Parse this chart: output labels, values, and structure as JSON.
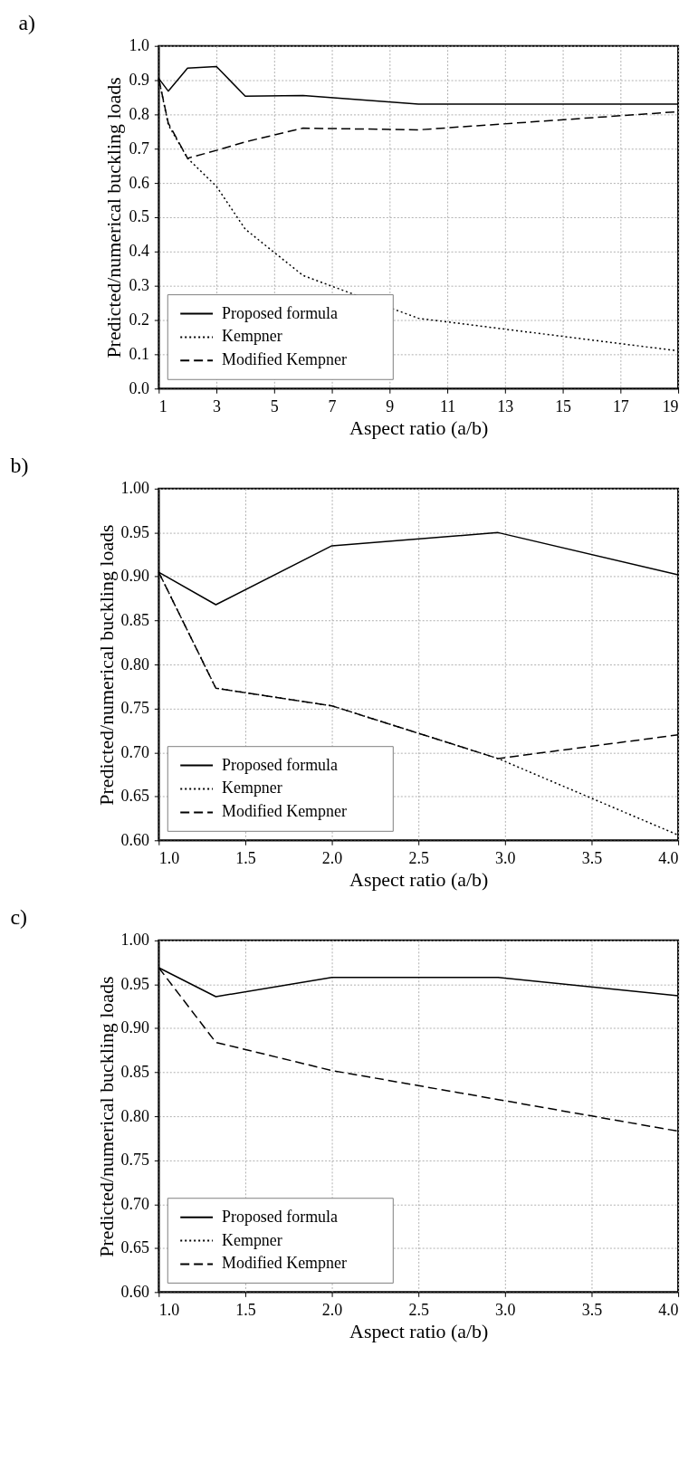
{
  "chart_data": [
    {
      "type": "line",
      "title": "a)",
      "xlabel": "Aspect ratio (a/b)",
      "ylabel": "Predicted/numerical buckling loads",
      "xlim": [
        1,
        19
      ],
      "xticks": [
        1,
        3,
        5,
        7,
        9,
        11,
        13,
        15,
        17,
        19
      ],
      "ylim": [
        0,
        1
      ],
      "yticks": [
        {
          "value": 0,
          "label": "0.0"
        },
        0.1,
        0.2,
        0.3,
        0.4,
        0.5,
        0.6,
        0.7,
        0.8,
        0.9,
        {
          "value": 1,
          "label": "1.0"
        }
      ],
      "grid": true,
      "legend": "bottom left",
      "x": [
        1,
        1.33,
        2,
        3,
        4,
        6,
        10,
        19
      ],
      "series": [
        {
          "name": "Proposed formula",
          "color": "#000000",
          "line_style": "solid",
          "values": [
            0.905,
            0.868,
            0.935,
            0.94,
            0.853,
            0.855,
            0.83,
            0.83
          ]
        },
        {
          "name": "Kempner",
          "color": "#000000",
          "line_style": "dotted",
          "values": [
            0.905,
            0.77,
            0.672,
            0.59,
            0.465,
            0.33,
            0.205,
            0.11
          ]
        },
        {
          "name": "Modified Kempner",
          "color": "#000000",
          "line_style": "dashed",
          "values": [
            0.905,
            0.775,
            0.672,
            0.695,
            0.72,
            0.76,
            0.755,
            0.808
          ]
        }
      ]
    },
    {
      "type": "line",
      "title": "b)",
      "xlabel": "Aspect ratio (a/b)",
      "ylabel": "Predicted/numerical buckling loads",
      "xlim": [
        1,
        4
      ],
      "xticks": [
        {
          "value": 1,
          "label": "1.0"
        },
        1.5,
        {
          "value": 2,
          "label": "2.0"
        },
        2.5,
        {
          "value": 3,
          "label": "3.0"
        },
        3.5,
        {
          "value": 4,
          "label": "4.0"
        }
      ],
      "ylim": [
        0.6,
        1
      ],
      "yticks": [
        {
          "value": 0.6,
          "label": "0.60"
        },
        0.65,
        {
          "value": 0.7,
          "label": "0.70"
        },
        0.75,
        {
          "value": 0.8,
          "label": "0.80"
        },
        0.85,
        {
          "value": 0.9,
          "label": "0.90"
        },
        0.95,
        {
          "value": 1,
          "label": "1.00"
        }
      ],
      "grid": true,
      "legend": "bottom left",
      "x": [
        1,
        1.33,
        2,
        2.96,
        4
      ],
      "series": [
        {
          "name": "Proposed formula",
          "color": "#000000",
          "line_style": "solid",
          "values": [
            0.905,
            0.868,
            0.935,
            0.95,
            0.902
          ]
        },
        {
          "name": "Kempner",
          "color": "#000000",
          "line_style": "dotted",
          "values": [
            0.905,
            0.773,
            0.753,
            0.693,
            0.606
          ]
        },
        {
          "name": "Modified Kempner",
          "color": "#000000",
          "line_style": "dashed",
          "values": [
            0.905,
            0.773,
            0.753,
            0.693,
            0.72
          ]
        }
      ]
    },
    {
      "type": "line",
      "title": "c)",
      "xlabel": "Aspect ratio (a/b)",
      "ylabel": "Predicted/numerical buckling loads",
      "xlim": [
        1,
        4
      ],
      "xticks": [
        {
          "value": 1,
          "label": "1.0"
        },
        1.5,
        {
          "value": 2,
          "label": "2.0"
        },
        2.5,
        {
          "value": 3,
          "label": "3.0"
        },
        3.5,
        {
          "value": 4,
          "label": "4.0"
        }
      ],
      "ylim": [
        0.6,
        1
      ],
      "yticks": [
        {
          "value": 0.6,
          "label": "0.60"
        },
        0.65,
        {
          "value": 0.7,
          "label": "0.70"
        },
        0.75,
        {
          "value": 0.8,
          "label": "0.80"
        },
        0.85,
        {
          "value": 0.9,
          "label": "0.90"
        },
        0.95,
        {
          "value": 1,
          "label": "1.00"
        }
      ],
      "grid": true,
      "legend": "bottom left",
      "x": [
        1,
        1.33,
        2,
        2.96,
        4
      ],
      "series": [
        {
          "name": "Proposed formula",
          "color": "#000000",
          "line_style": "solid",
          "values": [
            0.969,
            0.936,
            0.958,
            0.958,
            0.937
          ]
        },
        {
          "name": "Kempner",
          "color": "#000000",
          "line_style": "dotted",
          "values": [
            null,
            null,
            null,
            null,
            null
          ]
        },
        {
          "name": "Modified Kempner",
          "color": "#000000",
          "line_style": "dashed",
          "values": [
            0.969,
            0.884,
            0.852,
            0.819,
            0.783
          ]
        }
      ]
    }
  ]
}
